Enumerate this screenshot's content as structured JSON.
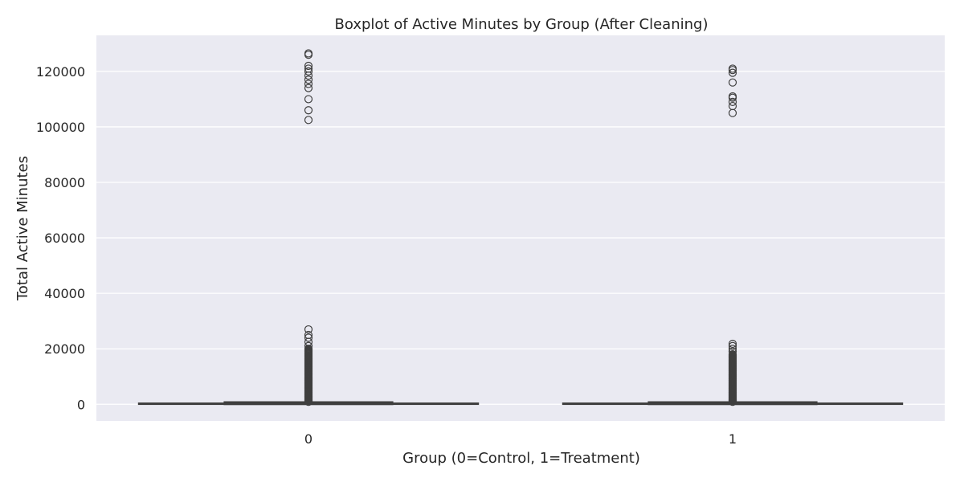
{
  "chart_data": {
    "type": "box",
    "title": "Boxplot of Active Minutes by Group (After Cleaning)",
    "xlabel": "Group (0=Control, 1=Treatment)",
    "ylabel": "Total Active Minutes",
    "ylim": [
      -6000,
      133000
    ],
    "yticks": [
      0,
      20000,
      40000,
      60000,
      80000,
      100000,
      120000
    ],
    "ytick_labels": [
      "0",
      "20000",
      "40000",
      "60000",
      "80000",
      "100000",
      "120000"
    ],
    "grid": true,
    "colors": {
      "plot_background": "#eaeaf2",
      "grid": "#ffffff",
      "box_fill": "#4c72b0",
      "line": "#3f3f3f",
      "text": "#262626"
    },
    "groups": [
      {
        "label": "0",
        "whisker_low": 0,
        "q1": 60,
        "median": 160,
        "q3": 360,
        "whisker_high": 800,
        "outliers_dense_range": [
          900,
          20000
        ],
        "outliers": [
          21000,
          22500,
          24000,
          25000,
          27000,
          102500,
          106000,
          110000,
          114000,
          115500,
          117000,
          118500,
          120000,
          121000,
          122000,
          126000,
          126500
        ]
      },
      {
        "label": "1",
        "whisker_low": 0,
        "q1": 60,
        "median": 160,
        "q3": 360,
        "whisker_high": 800,
        "outliers_dense_range": [
          900,
          18000
        ],
        "outliers": [
          19000,
          20000,
          21000,
          21800,
          105000,
          107500,
          109000,
          110500,
          111000,
          116000,
          119500,
          120500,
          121000
        ]
      }
    ]
  }
}
